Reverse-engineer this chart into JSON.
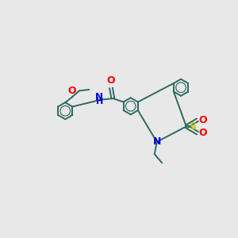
{
  "background_color": "#e8e8e8",
  "bond_color": "#2d6b5e",
  "atom_colors": {
    "O": "#ff0000",
    "N": "#0000cc",
    "S": "#cccc00",
    "H": "#2d6b5e",
    "C": "#2d6b5e"
  },
  "figsize": [
    3.0,
    3.0
  ],
  "dpi": 100,
  "lw": 1.4,
  "ring_inner_lw": 0.85,
  "ring_inner_ratio": 0.6
}
